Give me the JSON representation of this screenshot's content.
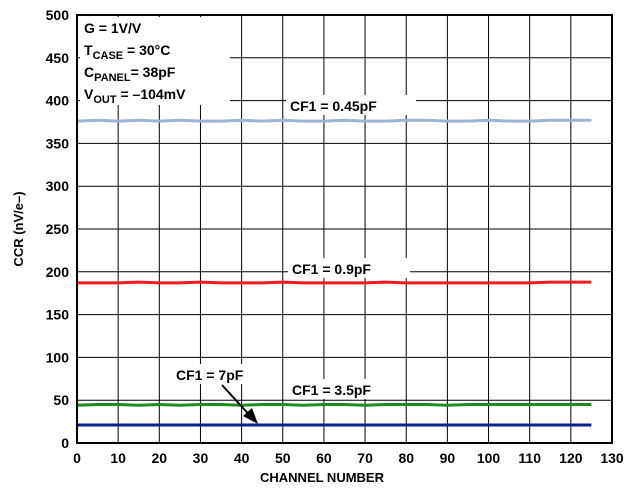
{
  "chart_data": {
    "type": "line",
    "x": [
      0,
      5,
      10,
      15,
      20,
      25,
      30,
      35,
      40,
      45,
      50,
      55,
      60,
      65,
      70,
      75,
      80,
      85,
      90,
      95,
      100,
      105,
      110,
      115,
      120,
      125
    ],
    "series": [
      {
        "name": "CF1 = 0.45pF",
        "color": "#9fb3d3",
        "values": [
          376,
          377,
          376,
          377,
          376,
          377,
          376,
          376,
          377,
          376,
          377,
          376,
          376,
          377,
          376,
          376,
          377,
          377,
          376,
          376,
          377,
          376,
          376,
          377,
          377,
          377
        ]
      },
      {
        "name": "CF1 = 0.9pF",
        "color": "#ee1c1c",
        "values": [
          187,
          187,
          187,
          188,
          187,
          187,
          188,
          187,
          187,
          187,
          188,
          187,
          187,
          187,
          187,
          188,
          187,
          187,
          187,
          187,
          187,
          187,
          187,
          188,
          188,
          188
        ]
      },
      {
        "name": "CF1 = 3.5pF",
        "color": "#1e8c1e",
        "values": [
          44,
          45,
          45,
          44,
          45,
          44,
          45,
          45,
          44,
          45,
          45,
          44,
          45,
          45,
          44,
          45,
          45,
          45,
          44,
          45,
          45,
          45,
          45,
          45,
          45,
          45
        ]
      },
      {
        "name": "CF1 = 7pF",
        "color": "#0b1f8c",
        "values": [
          21,
          21,
          21,
          21,
          21,
          21,
          21,
          21,
          21,
          21,
          21,
          21,
          21,
          21,
          21,
          21,
          21,
          21,
          21,
          21,
          21,
          21,
          21,
          21,
          21,
          21
        ]
      }
    ],
    "xlabel": "CHANNEL NUMBER",
    "ylabel": "CCR (nV/e–)",
    "xlim": [
      0,
      130
    ],
    "ylim": [
      0,
      500
    ],
    "xticks": [
      "0",
      "10",
      "20",
      "30",
      "40",
      "50",
      "60",
      "70",
      "80",
      "90",
      "100",
      "110",
      "120",
      "130"
    ],
    "yticks": [
      "0",
      "50",
      "100",
      "150",
      "200",
      "250",
      "300",
      "350",
      "400",
      "450",
      "500"
    ],
    "grid": true,
    "conditions": {
      "gain": "G = 1V/V",
      "tcase_main": "T",
      "tcase_sub": "CASE",
      "tcase_value": " = 30°C",
      "cpanel_main": "C",
      "cpanel_sub": "PANEL",
      "cpanel_value": "= 38pF",
      "vout_main": "V",
      "vout_sub": "OUT",
      "vout_value": " = –104mV"
    },
    "labels": {
      "cf045": "CF1 = 0.45pF",
      "cf09": "CF1 = 0.9pF",
      "cf35": "CF1 = 3.5pF",
      "cf7": "CF1 = 7pF"
    }
  }
}
